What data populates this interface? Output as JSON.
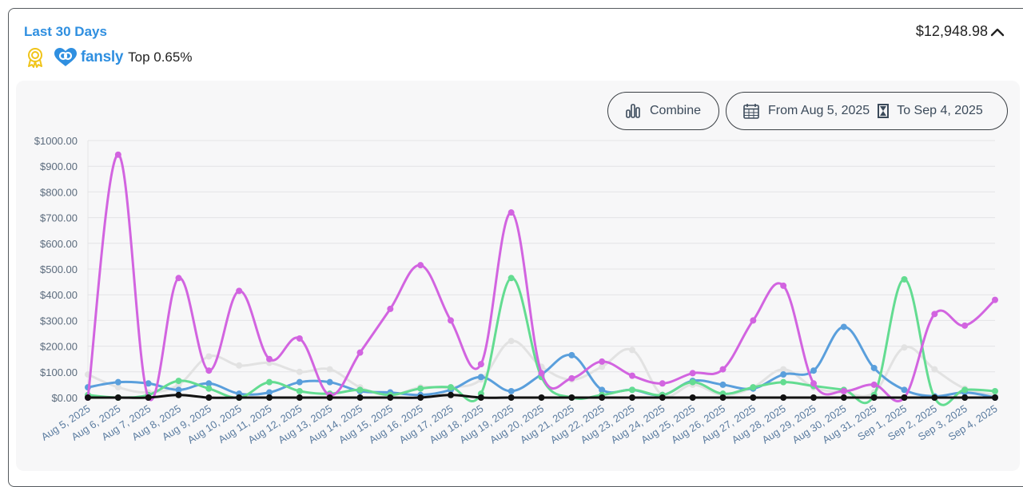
{
  "header": {
    "title": "Last 30 Days",
    "platform": "fansly",
    "rank": "Top 0.65%",
    "total": "$12,948.98"
  },
  "controls": {
    "combine_label": "Combine",
    "from_label": "From Aug 5, 2025",
    "to_label": "To Sep 4, 2025"
  },
  "chart_data": {
    "type": "line",
    "title": "",
    "xlabel": "",
    "ylabel": "",
    "ylim": [
      0,
      1000
    ],
    "y_ticks": [
      "$0.00",
      "$100.00",
      "$200.00",
      "$300.00",
      "$400.00",
      "$500.00",
      "$600.00",
      "$700.00",
      "$800.00",
      "$900.00",
      "$1000.00"
    ],
    "categories": [
      "Aug 5, 2025",
      "Aug 6, 2025",
      "Aug 7, 2025",
      "Aug 8, 2025",
      "Aug 9, 2025",
      "Aug 10, 2025",
      "Aug 11, 2025",
      "Aug 12, 2025",
      "Aug 13, 2025",
      "Aug 14, 2025",
      "Aug 15, 2025",
      "Aug 16, 2025",
      "Aug 17, 2025",
      "Aug 18, 2025",
      "Aug 19, 2025",
      "Aug 20, 2025",
      "Aug 21, 2025",
      "Aug 22, 2025",
      "Aug 23, 2025",
      "Aug 24, 2025",
      "Aug 25, 2025",
      "Aug 26, 2025",
      "Aug 27, 2025",
      "Aug 28, 2025",
      "Aug 29, 2025",
      "Aug 30, 2025",
      "Aug 31, 2025",
      "Sep 1, 2025",
      "Sep 2, 2025",
      "Sep 3, 2025",
      "Sep 4, 2025"
    ],
    "series": [
      {
        "name": "light-gray",
        "color": "#e2e2e2",
        "values": [
          90,
          40,
          20,
          50,
          160,
          125,
          135,
          100,
          110,
          40,
          10,
          40,
          40,
          70,
          220,
          120,
          70,
          120,
          185,
          10,
          50,
          10,
          40,
          110,
          40,
          20,
          20,
          195,
          110,
          35,
          10
        ]
      },
      {
        "name": "blue",
        "color": "#5a9fdc",
        "values": [
          40,
          60,
          55,
          30,
          55,
          15,
          20,
          60,
          60,
          25,
          20,
          10,
          30,
          80,
          25,
          90,
          165,
          30,
          30,
          10,
          65,
          50,
          35,
          90,
          105,
          275,
          115,
          30,
          5,
          20,
          0
        ]
      },
      {
        "name": "green",
        "color": "#63dc91",
        "values": [
          10,
          0,
          10,
          65,
          35,
          0,
          60,
          25,
          15,
          30,
          10,
          35,
          40,
          15,
          465,
          80,
          0,
          10,
          30,
          10,
          60,
          15,
          40,
          60,
          45,
          30,
          10,
          460,
          0,
          30,
          25
        ]
      },
      {
        "name": "magenta",
        "color": "#d264e0",
        "values": [
          0,
          945,
          0,
          465,
          105,
          415,
          150,
          230,
          10,
          175,
          345,
          515,
          300,
          130,
          720,
          95,
          75,
          140,
          85,
          55,
          95,
          110,
          300,
          435,
          55,
          25,
          50,
          0,
          325,
          280,
          380
        ]
      },
      {
        "name": "black",
        "color": "#111111",
        "values": [
          0,
          0,
          0,
          10,
          0,
          0,
          0,
          0,
          0,
          0,
          0,
          0,
          10,
          0,
          0,
          0,
          0,
          0,
          0,
          0,
          0,
          0,
          0,
          0,
          0,
          0,
          0,
          0,
          0,
          0,
          0
        ]
      }
    ]
  }
}
